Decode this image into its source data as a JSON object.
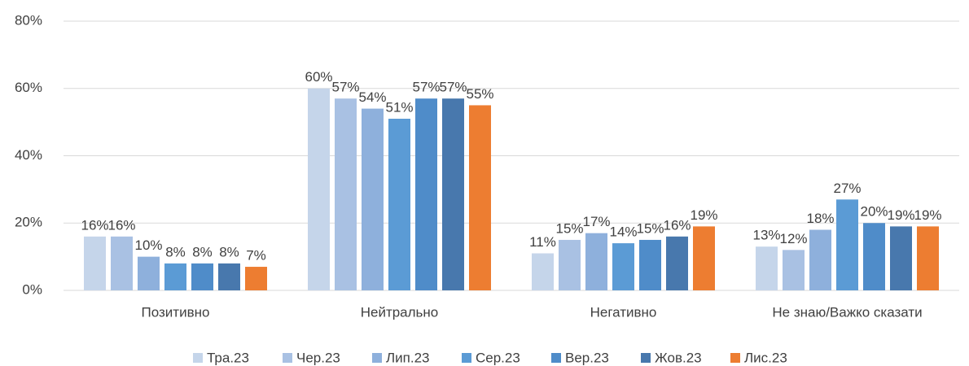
{
  "chart_data": {
    "type": "bar",
    "categories": [
      "Позитивно",
      "Нейтрально",
      "Негативно",
      "Не знаю/Важко сказати"
    ],
    "series": [
      {
        "name": "Тра.23",
        "color": "#c5d5ea",
        "values": [
          16,
          60,
          11,
          13
        ],
        "value_labels": [
          "16%",
          "60%",
          "11%",
          "13%"
        ]
      },
      {
        "name": "Чер.23",
        "color": "#a9c1e3",
        "values": [
          16,
          57,
          15,
          12
        ],
        "value_labels": [
          "16%",
          "57%",
          "15%",
          "12%"
        ]
      },
      {
        "name": "Лип.23",
        "color": "#8eb0dc",
        "values": [
          10,
          54,
          17,
          18
        ],
        "value_labels": [
          "10%",
          "54%",
          "17%",
          "18%"
        ]
      },
      {
        "name": "Сер.23",
        "color": "#5b9bd5",
        "values": [
          8,
          51,
          14,
          27
        ],
        "value_labels": [
          "8%",
          "51%",
          "14%",
          "27%"
        ]
      },
      {
        "name": "Вер.23",
        "color": "#4f8cc9",
        "values": [
          8,
          57,
          15,
          20
        ],
        "value_labels": [
          "8%",
          "57%",
          "15%",
          "20%"
        ]
      },
      {
        "name": "Жов.23",
        "color": "#4878ad",
        "values": [
          8,
          57,
          16,
          19
        ],
        "value_labels": [
          "8%",
          "57%",
          "16%",
          "19%"
        ]
      },
      {
        "name": "Лис.23",
        "color": "#ed7d31",
        "values": [
          7,
          55,
          19,
          19
        ],
        "value_labels": [
          "7%",
          "55%",
          "19%",
          "19%"
        ]
      }
    ],
    "ylim": [
      0,
      80
    ],
    "yticks": [
      {
        "value": 0,
        "label": "0%"
      },
      {
        "value": 20,
        "label": "20%"
      },
      {
        "value": 40,
        "label": "40%"
      },
      {
        "value": 60,
        "label": "60%"
      },
      {
        "value": 80,
        "label": "80%"
      }
    ],
    "grid": true,
    "legend": "bottom"
  }
}
